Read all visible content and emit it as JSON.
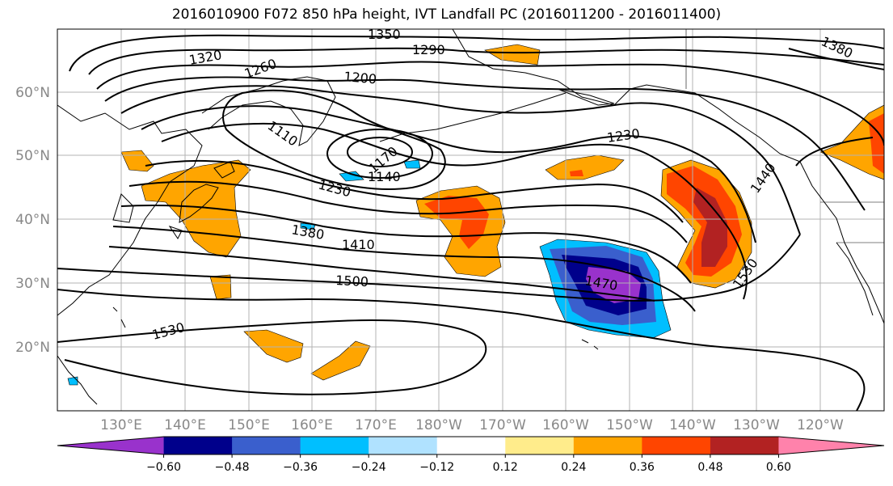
{
  "title": "2016010900 F072 850 hPa height, IVT Landfall PC (2016011200 - 2016011400)",
  "map": {
    "lat_ticks": [
      "60°N",
      "50°N",
      "40°N",
      "30°N",
      "20°N"
    ],
    "lon_ticks": [
      "130°E",
      "140°E",
      "150°E",
      "160°E",
      "170°E",
      "180°W",
      "170°W",
      "160°W",
      "150°W",
      "140°W",
      "130°W",
      "120°W"
    ],
    "contour_labels": [
      "1350",
      "1320",
      "1290",
      "1260",
      "1200",
      "1380",
      "1110",
      "1230",
      "1170",
      "1140",
      "1230",
      "1380",
      "1410",
      "1440",
      "1470",
      "1500",
      "1530",
      "1530"
    ]
  },
  "colorbar": {
    "colors": [
      "#9932cc",
      "#00008b",
      "#3a5fcd",
      "#00bfff",
      "#b0e2ff",
      "#ffffff",
      "#ffec8b",
      "#ffa500",
      "#ff4500",
      "#b22222",
      "#ff82ab"
    ],
    "tick_labels": [
      "−0.60",
      "−0.48",
      "−0.36",
      "−0.24",
      "−0.12",
      "0.12",
      "0.24",
      "0.36",
      "0.48",
      "0.60"
    ]
  }
}
